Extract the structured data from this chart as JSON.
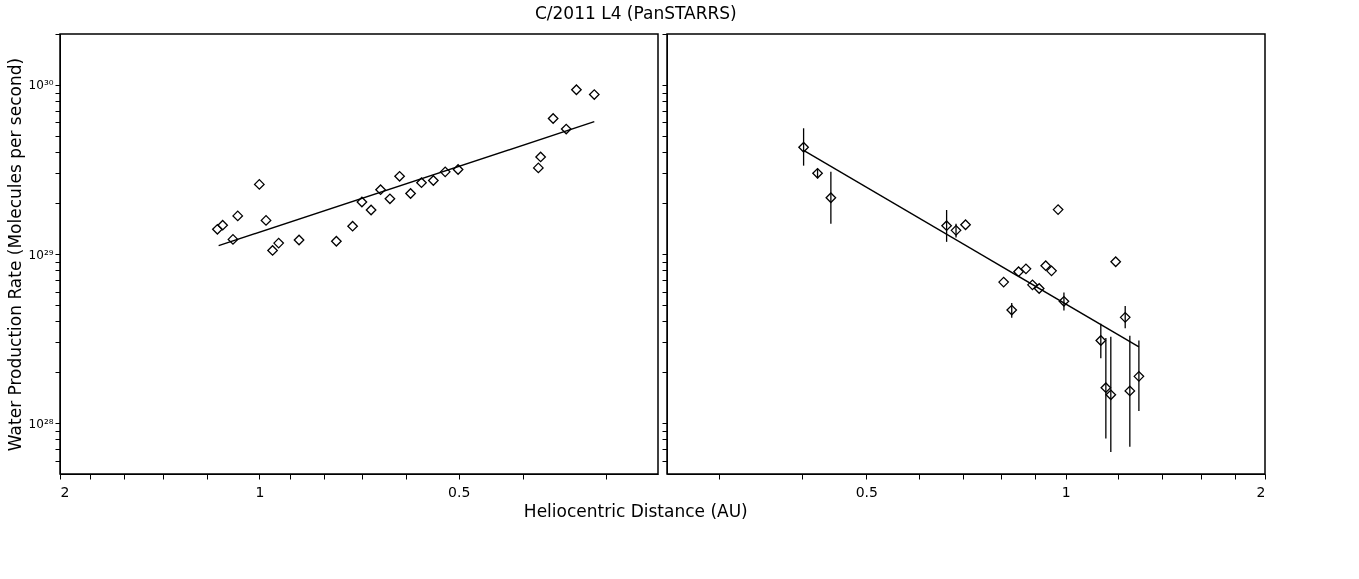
{
  "chart_data": [
    {
      "type": "scatter",
      "title": "C/2011 L4 (PanSTARRS)",
      "xlabel": "Heliocentric Distance (AU)",
      "ylabel": "Water Production Rate (Molecules per second)",
      "log": "xy",
      "xlim": [
        2,
        0.25
      ],
      "ylim": [
        5e+27,
        2e+30
      ],
      "xticks": [
        {
          "value": 0.3,
          "label": null
        },
        {
          "value": 0.4,
          "label": null
        },
        0.5,
        {
          "value": 0.6,
          "label": null
        },
        {
          "value": 0.7,
          "label": null
        },
        {
          "value": 0.8,
          "label": null
        },
        {
          "value": 0.9,
          "label": null
        },
        1,
        {
          "value": 1.2,
          "label": null
        },
        {
          "value": 1.4,
          "label": null
        },
        {
          "value": 1.6,
          "label": null
        },
        {
          "value": 1.8,
          "label": null
        },
        2
      ],
      "yticks": [
        {
          "value": 6e+27,
          "label": null
        },
        {
          "value": 7e+27,
          "label": null
        },
        {
          "value": 8e+27,
          "label": null
        },
        {
          "value": 9e+27,
          "label": null
        },
        {
          "value": 1e+28,
          "label": "10²⁸"
        },
        {
          "value": 2e+28,
          "label": null
        },
        {
          "value": 3e+28,
          "label": null
        },
        {
          "value": 4e+28,
          "label": null
        },
        {
          "value": 5e+28,
          "label": null
        },
        {
          "value": 6e+28,
          "label": null
        },
        {
          "value": 7e+28,
          "label": null
        },
        {
          "value": 8e+28,
          "label": null
        },
        {
          "value": 9e+28,
          "label": null
        },
        {
          "value": 1e+29,
          "label": "10²⁹"
        },
        {
          "value": 2e+29,
          "label": null
        },
        {
          "value": 3e+29,
          "label": null
        },
        {
          "value": 4e+29,
          "label": null
        },
        {
          "value": 5e+29,
          "label": null
        },
        {
          "value": 6e+29,
          "label": null
        },
        {
          "value": 7e+29,
          "label": null
        },
        {
          "value": 8e+29,
          "label": null
        },
        {
          "value": 9e+29,
          "label": null
        },
        {
          "value": 1e+30,
          "label": "10³⁰"
        },
        {
          "value": 2e+30,
          "label": null
        }
      ],
      "series": [
        {
          "marker": "diamond",
          "color": "#000000",
          "x": [
            1.157,
            1.136,
            1.096,
            1.078,
            1.0,
            0.977,
            0.955,
            0.935,
            0.871,
            0.765,
            0.723,
            0.7,
            0.678,
            0.656,
            0.635,
            0.614,
            0.591,
            0.569,
            0.546,
            0.524,
            0.501,
            0.379,
            0.376,
            0.36,
            0.344,
            0.332,
            0.312
          ],
          "values": [
            1.4e+29,
            1.48e+29,
            1.22e+29,
            1.68e+29,
            2.58e+29,
            1.58e+29,
            1.05e+29,
            1.16e+29,
            1.21e+29,
            1.19e+29,
            1.46e+29,
            2.03e+29,
            1.82e+29,
            2.4e+29,
            2.12e+29,
            2.88e+29,
            2.28e+29,
            2.64e+29,
            2.72e+29,
            3.06e+29,
            3.16e+29,
            3.23e+29,
            3.75e+29,
            6.33e+29,
            5.48e+29,
            9.36e+29,
            8.77e+29
          ]
        },
        {
          "type": "line",
          "color": "#000000",
          "x": [
            1.152,
            0.312
          ],
          "values": [
            1.12e+29,
            6.06e+29
          ]
        }
      ]
    },
    {
      "type": "scatter",
      "log": "xy",
      "tick_labels": "x",
      "xlim": [
        0.25,
        2
      ],
      "ylim": [
        5e+27,
        2e+30
      ],
      "xticks": [
        {
          "value": 0.3,
          "label": null
        },
        {
          "value": 0.4,
          "label": null
        },
        0.5,
        {
          "value": 0.6,
          "label": null
        },
        {
          "value": 0.7,
          "label": null
        },
        {
          "value": 0.8,
          "label": null
        },
        {
          "value": 0.9,
          "label": null
        },
        1,
        {
          "value": 1.2,
          "label": null
        },
        {
          "value": 1.4,
          "label": null
        },
        {
          "value": 1.6,
          "label": null
        },
        {
          "value": 1.8,
          "label": null
        },
        2
      ],
      "yticks": [
        {
          "value": 6e+27,
          "label": null
        },
        {
          "value": 7e+27,
          "label": null
        },
        {
          "value": 8e+27,
          "label": null
        },
        {
          "value": 9e+27,
          "label": null
        },
        {
          "value": 1e+28,
          "label": null
        },
        {
          "value": 2e+28,
          "label": null
        },
        {
          "value": 3e+28,
          "label": null
        },
        {
          "value": 4e+28,
          "label": null
        },
        {
          "value": 5e+28,
          "label": null
        },
        {
          "value": 6e+28,
          "label": null
        },
        {
          "value": 7e+28,
          "label": null
        },
        {
          "value": 8e+28,
          "label": null
        },
        {
          "value": 9e+28,
          "label": null
        },
        {
          "value": 1e+29,
          "label": null
        },
        {
          "value": 2e+29,
          "label": null
        },
        {
          "value": 3e+29,
          "label": null
        },
        {
          "value": 4e+29,
          "label": null
        },
        {
          "value": 5e+29,
          "label": null
        },
        {
          "value": 6e+29,
          "label": null
        },
        {
          "value": 7e+29,
          "label": null
        },
        {
          "value": 8e+29,
          "label": null
        },
        {
          "value": 9e+29,
          "label": null
        },
        {
          "value": 1e+30,
          "label": null
        },
        {
          "value": 2e+30,
          "label": null
        }
      ],
      "series": [
        {
          "marker": "diamond",
          "color": "#000000",
          "x": [
            0.402,
            0.422,
            0.442,
            0.661,
            0.683,
            0.706,
            0.974,
            1.19,
            0.806,
            0.829,
            0.849,
            0.871,
            0.891,
            0.912,
            0.933,
            0.952,
            0.994,
            1.23,
            1.13,
            1.15,
            1.17,
            1.25,
            1.29
          ],
          "values": [
            4.28e+29,
            3e+29,
            2.15e+29,
            1.47e+29,
            1.38e+29,
            1.49e+29,
            1.83e+29,
            9e+28,
            6.82e+28,
            4.66e+28,
            7.86e+28,
            8.17e+28,
            6.57e+28,
            6.25e+28,
            8.53e+28,
            7.95e+28,
            5.25e+28,
            4.22e+28,
            3.08e+28,
            1.62e+28,
            1.47e+28,
            1.55e+28,
            1.89e+28
          ],
          "errors": [
            [
              3.33e+29,
              5.54e+29
            ],
            [
              2.8e+29,
              3.2e+29
            ],
            [
              1.51e+29,
              3.07e+29
            ],
            [
              1.18e+29,
              1.82e+29
            ],
            [
              1.25e+29,
              1.51e+29
            ],
            null,
            null,
            null,
            null,
            [
              4.2e+28,
              5.13e+28
            ],
            null,
            null,
            null,
            null,
            null,
            null,
            [
              4.63e+28,
              5.92e+28
            ],
            [
              3.64e+28,
              4.92e+28
            ],
            [
              2.42e+28,
              3.87e+28
            ],
            [
              8.1e+27,
              3.19e+28
            ],
            [
              6.75e+27,
              3.24e+28
            ],
            [
              7.25e+27,
              3.28e+28
            ],
            [
              1.18e+28,
              3.08e+28
            ]
          ]
        },
        {
          "type": "line",
          "color": "#000000",
          "x": [
            0.402,
            1.29
          ],
          "values": [
            4.1e+29,
            2.82e+28
          ]
        }
      ]
    }
  ]
}
